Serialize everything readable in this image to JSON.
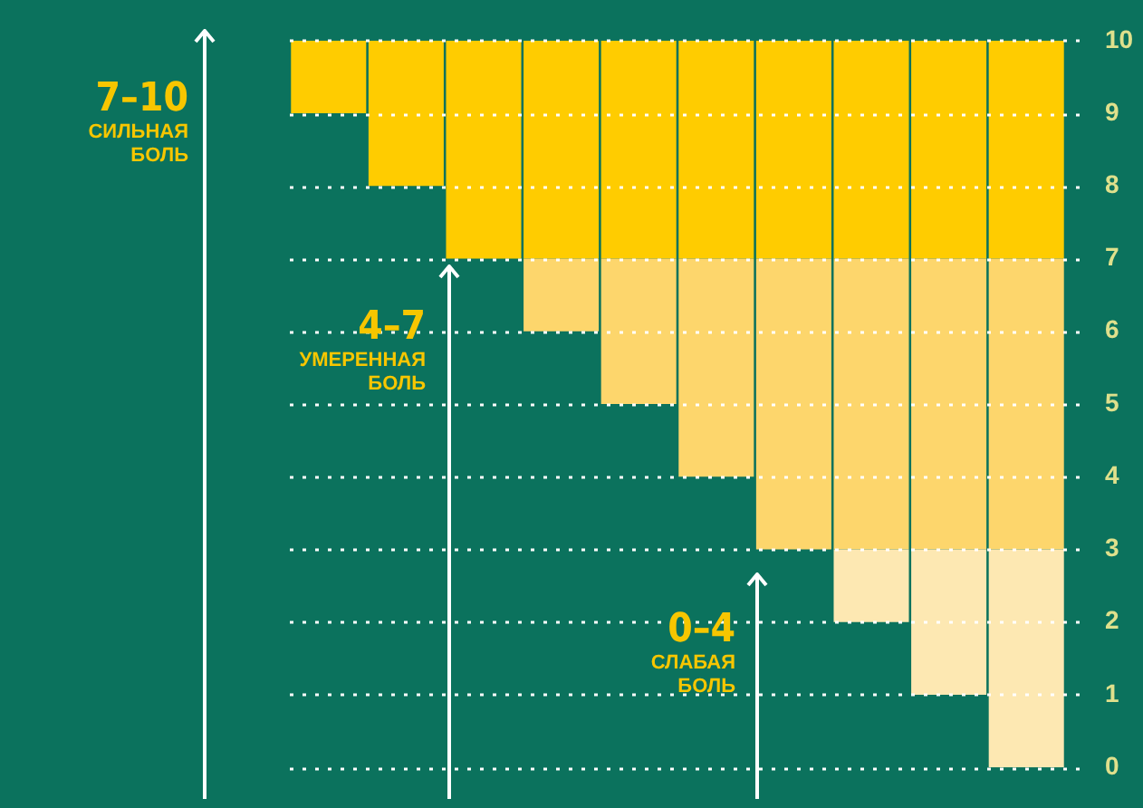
{
  "chart_data": {
    "type": "bar",
    "categories": [
      null,
      null,
      null,
      null,
      null,
      null,
      null,
      null,
      null,
      null
    ],
    "series": [
      {
        "color": "#fde8b2",
        "base": [
          null,
          null,
          null,
          null,
          null,
          null,
          null,
          2,
          1,
          0
        ],
        "values": [
          null,
          null,
          null,
          null,
          null,
          null,
          null,
          1,
          2,
          3
        ]
      },
      {
        "color": "#fdd66c",
        "base": [
          null,
          null,
          null,
          6,
          5,
          4,
          3,
          3,
          3,
          3
        ],
        "values": [
          null,
          null,
          null,
          1,
          2,
          3,
          4,
          4,
          4,
          4
        ]
      },
      {
        "color": "#ffcc00",
        "base": [
          9,
          8,
          7,
          7,
          7,
          7,
          7,
          7,
          7,
          7
        ],
        "values": [
          1,
          2,
          3,
          3,
          3,
          3,
          3,
          3,
          3,
          3
        ]
      }
    ],
    "ylim": [
      0,
      10
    ],
    "yticks": [
      0,
      1,
      2,
      3,
      4,
      5,
      6,
      7,
      8,
      9,
      10
    ],
    "grid": "y",
    "legend": false,
    "tick_labels": "y",
    "annotations": [
      "7–10 СИЛЬНАЯ БОЛЬ",
      "4–7 УМЕРЕННАЯ БОЛЬ",
      "0–4 СЛАБАЯ БОЛЬ"
    ]
  }
}
